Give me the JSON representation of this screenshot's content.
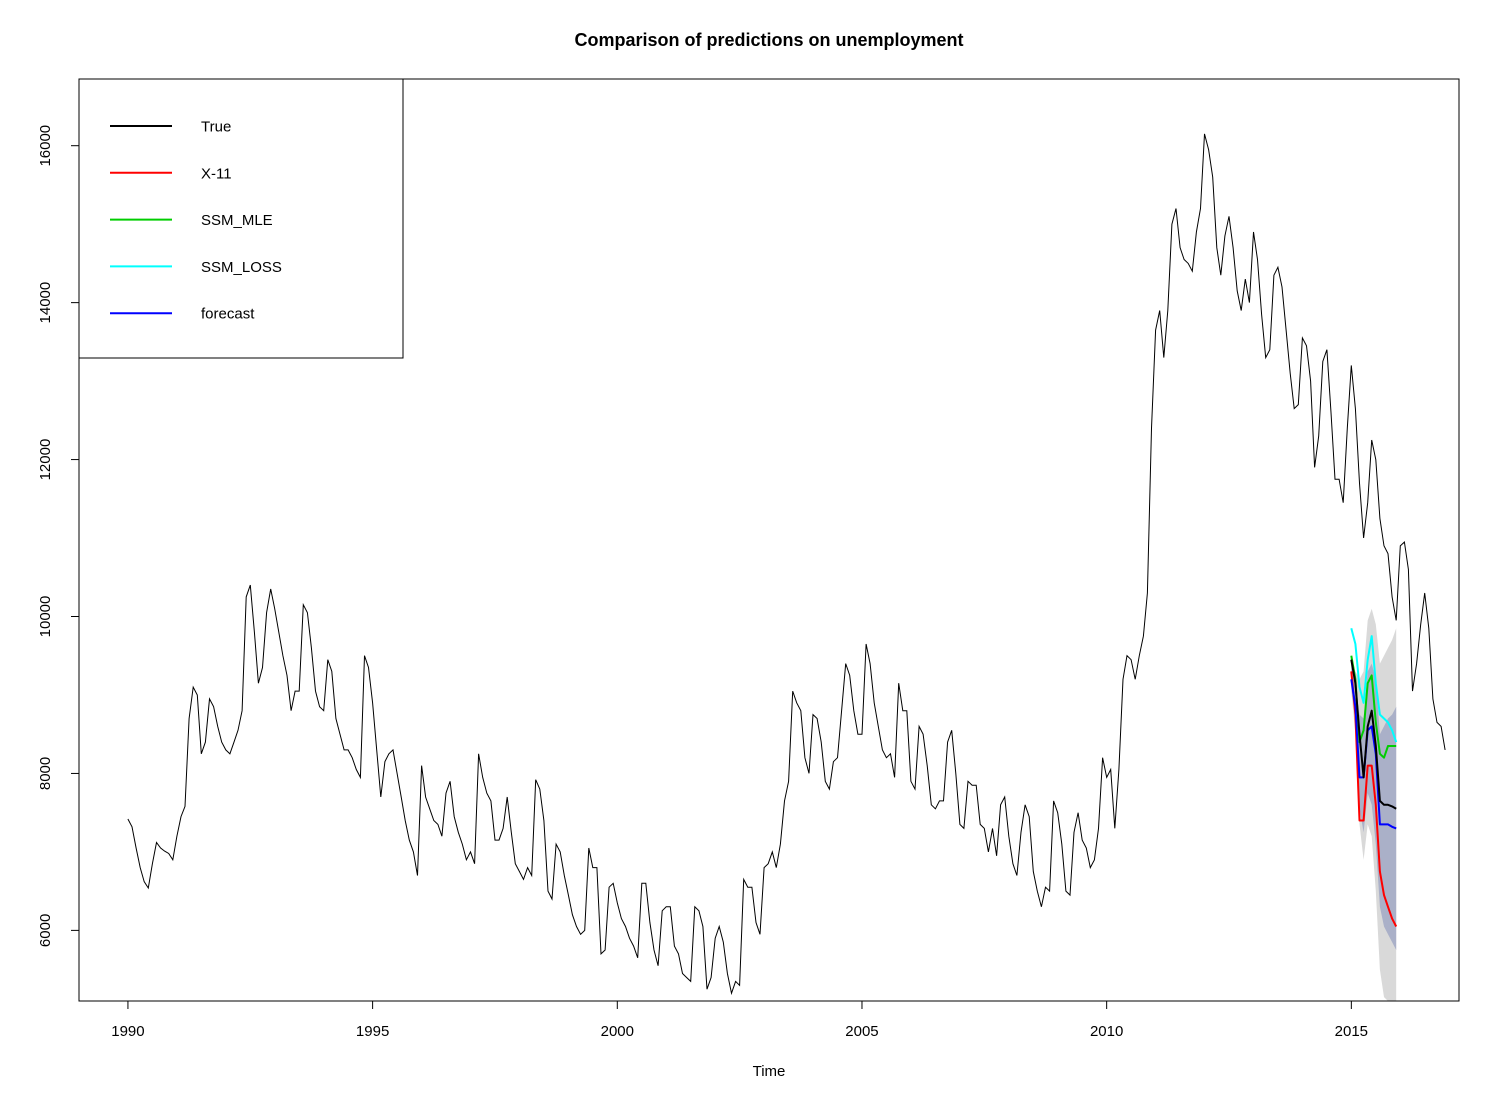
{
  "chart_data": {
    "type": "line",
    "title": "Comparison of predictions on unemployment",
    "xlabel": "Time",
    "ylabel": "",
    "xlim": [
      1989,
      2017.2
    ],
    "ylim": [
      5100,
      16850
    ],
    "x_ticks": [
      1990,
      1995,
      2000,
      2005,
      2010,
      2015
    ],
    "y_ticks": [
      6000,
      8000,
      10000,
      12000,
      14000,
      16000
    ],
    "grid": false,
    "legend_position": "top-left",
    "legend": [
      {
        "label": "True",
        "color": "#000000"
      },
      {
        "label": "X-11",
        "color": "#ff0000"
      },
      {
        "label": "SSM_MLE",
        "color": "#00cd00"
      },
      {
        "label": "SSM_LOSS",
        "color": "#00ffff"
      },
      {
        "label": "forecast",
        "color": "#0000ff"
      }
    ],
    "history": {
      "start_year": 1990,
      "frequency": 12,
      "color": "#000000",
      "values": [
        7420,
        7320,
        7050,
        6800,
        6620,
        6540,
        6850,
        7120,
        7050,
        7010,
        6980,
        6900,
        7200,
        7450,
        7580,
        8700,
        9100,
        9000,
        8250,
        8400,
        8950,
        8850,
        8600,
        8400,
        8300,
        8250,
        8400,
        8550,
        8800,
        10250,
        10400,
        9800,
        9150,
        9350,
        10050,
        10350,
        10100,
        9800,
        9500,
        9250,
        8800,
        9050,
        9050,
        10150,
        10050,
        9600,
        9050,
        8850,
        8800,
        9450,
        9300,
        8700,
        8500,
        8300,
        8300,
        8200,
        8050,
        7950,
        9500,
        9350,
        8900,
        8300,
        7700,
        8150,
        8250,
        8300,
        8000,
        7700,
        7400,
        7150,
        7000,
        6700,
        8100,
        7700,
        7550,
        7400,
        7350,
        7200,
        7750,
        7900,
        7450,
        7250,
        7100,
        6900,
        7000,
        6850,
        8250,
        7950,
        7750,
        7650,
        7150,
        7150,
        7300,
        7700,
        7250,
        6850,
        6750,
        6650,
        6800,
        6700,
        7920,
        7800,
        7400,
        6500,
        6400,
        7100,
        7000,
        6700,
        6450,
        6200,
        6050,
        5950,
        6000,
        7050,
        6800,
        6800,
        5700,
        5750,
        6550,
        6600,
        6350,
        6150,
        6050,
        5900,
        5800,
        5650,
        6600,
        6600,
        6100,
        5750,
        5550,
        6250,
        6300,
        6300,
        5800,
        5700,
        5450,
        5400,
        5350,
        6300,
        6250,
        6050,
        5250,
        5400,
        5900,
        6050,
        5850,
        5450,
        5200,
        5350,
        5300,
        6650,
        6550,
        6550,
        6100,
        5950,
        6800,
        6850,
        7000,
        6800,
        7100,
        7650,
        7900,
        9050,
        8900,
        8800,
        8200,
        8000,
        8750,
        8700,
        8400,
        7900,
        7800,
        8150,
        8200,
        8800,
        9400,
        9250,
        8800,
        8500,
        8500,
        9650,
        9400,
        8900,
        8600,
        8300,
        8200,
        8250,
        7950,
        9150,
        8800,
        8800,
        7900,
        7800,
        8600,
        8500,
        8100,
        7600,
        7550,
        7650,
        7650,
        8400,
        8550,
        8000,
        7350,
        7300,
        7900,
        7850,
        7850,
        7350,
        7300,
        7000,
        7300,
        6950,
        7600,
        7700,
        7200,
        6850,
        6700,
        7250,
        7600,
        7450,
        6750,
        6500,
        6300,
        6550,
        6500,
        7650,
        7500,
        7100,
        6500,
        6450,
        7250,
        7500,
        7150,
        7050,
        6800,
        6900,
        7300,
        8200,
        7950,
        8050,
        7300,
        8050,
        9200,
        9500,
        9450,
        9200,
        9500,
        9750,
        10300,
        12400,
        13650,
        13900,
        13300,
        13900,
        15000,
        15200,
        14700,
        14550,
        14500,
        14400,
        14900,
        15200,
        16150,
        15950,
        15600,
        14700,
        14350,
        14850,
        15100,
        14700,
        14150,
        13900,
        14300,
        14000,
        14900,
        14550,
        13850,
        13300,
        13400,
        14350,
        14450,
        14200,
        13650,
        13100,
        12650,
        12700,
        13550,
        13450,
        13000,
        11900,
        12300,
        13250,
        13400,
        12600,
        11750,
        11750,
        11450,
        12400,
        13200,
        12650,
        11700,
        11000,
        11450,
        12250,
        12000,
        11250,
        10900,
        10800,
        10250,
        9950,
        10900,
        10950,
        10600,
        9050,
        9400,
        9900,
        10300,
        9850,
        8950,
        8650,
        8600,
        8300
      ]
    },
    "forecast_x": [
      2015.0,
      2015.0833,
      2015.1667,
      2015.25,
      2015.3333,
      2015.4167,
      2015.5,
      2015.5833,
      2015.6667,
      2015.75,
      2015.8333,
      2015.9167
    ],
    "series": [
      {
        "name": "True",
        "color": "#000000",
        "values": [
          9450,
          9150,
          8500,
          7950,
          8600,
          8800,
          8350,
          7650,
          7600,
          7600,
          7580,
          7550
        ]
      },
      {
        "name": "X-11",
        "color": "#ff0000",
        "values": [
          9300,
          8750,
          7400,
          7400,
          8100,
          8100,
          7600,
          6750,
          6450,
          6300,
          6150,
          6050
        ]
      },
      {
        "name": "SSM_MLE",
        "color": "#00cd00",
        "values": [
          9500,
          9200,
          8400,
          8550,
          9150,
          9250,
          8650,
          8250,
          8200,
          8350,
          8350,
          8350
        ]
      },
      {
        "name": "SSM_LOSS",
        "color": "#00ffff",
        "values": [
          9850,
          9650,
          9100,
          8900,
          9450,
          9750,
          9150,
          8750,
          8700,
          8650,
          8550,
          8400
        ]
      },
      {
        "name": "forecast",
        "color": "#0000ff",
        "values": [
          9200,
          8850,
          7950,
          7950,
          8550,
          8600,
          8250,
          7350,
          7350,
          7350,
          7320,
          7300
        ]
      }
    ],
    "bands": [
      {
        "color": "#d9d9d9",
        "lower": [
          9050,
          8500,
          7350,
          6900,
          7350,
          7200,
          6500,
          5500,
          5150,
          5000,
          4900,
          4800
        ],
        "upper": [
          9500,
          9300,
          9200,
          9300,
          9950,
          10100,
          9900,
          9400,
          9500,
          9600,
          9700,
          9850
        ]
      },
      {
        "color": "#aab0c8",
        "lower": [
          9100,
          8650,
          7550,
          7250,
          7750,
          7600,
          7100,
          6300,
          6050,
          5950,
          5850,
          5750
        ],
        "upper": [
          9400,
          9100,
          8750,
          8700,
          9300,
          9400,
          9200,
          8500,
          8600,
          8700,
          8750,
          8850
        ]
      }
    ]
  }
}
